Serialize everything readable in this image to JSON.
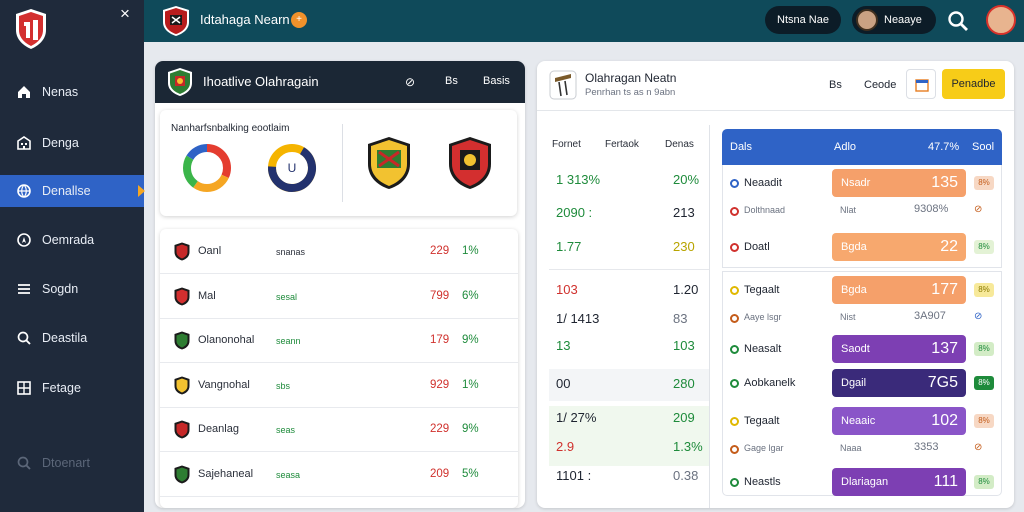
{
  "sidebar": {
    "close": "×",
    "items": [
      {
        "label": "Nenas",
        "icon": "home-icon"
      },
      {
        "label": "Denga",
        "icon": "building-icon"
      },
      {
        "label": "Denallse",
        "icon": "globe-icon"
      },
      {
        "label": "Oemrada",
        "icon": "location-icon"
      },
      {
        "label": "Sogdn",
        "icon": "menu-icon"
      },
      {
        "label": "Deastila",
        "icon": "search-icon"
      },
      {
        "label": "Fetage",
        "icon": "grid-icon"
      }
    ],
    "footer": {
      "label": "Dtoenart",
      "icon": "search-icon"
    }
  },
  "topbar": {
    "title": "Idtahaga Nearn",
    "dot": "+",
    "pill1": "Ntsna Nae",
    "pill2": "Neaaye"
  },
  "card1": {
    "title": "Ihoatlive Olahragain",
    "icon1": "⊘",
    "icon2": "Bs",
    "icon3": "Basis",
    "chart_caption": "Nanharfsnbalking eootlaim",
    "donut_center": "U",
    "rows": [
      {
        "name": "Oanl",
        "mid": "snanas",
        "v1": "229",
        "v2": "1%",
        "mid_green": false
      },
      {
        "name": "Mal",
        "mid": "sesal",
        "v1": "799",
        "v2": "6%",
        "mid_green": true
      },
      {
        "name": "Olanonohal",
        "mid": "seann",
        "v1": "179",
        "v2": "9%",
        "mid_green": true
      },
      {
        "name": "Vangnohal",
        "mid": "sbs",
        "v1": "929",
        "v2": "1%",
        "mid_green": true
      },
      {
        "name": "Deanlag",
        "mid": "seas",
        "v1": "229",
        "v2": "9%",
        "mid_green": true
      },
      {
        "name": "Sajehaneal",
        "mid": "seasa",
        "v1": "209",
        "v2": "5%",
        "mid_green": true
      }
    ]
  },
  "card3": {
    "title": "Olahragan Neatn",
    "subtitle": "Penrhan ts as n 9abn",
    "head_actions": {
      "a": "Bs",
      "b": "Ceode",
      "c": "Penadbe"
    },
    "columns": [
      "Fornet",
      "Fertaok",
      "Denas"
    ],
    "left_values": [
      {
        "a": "1  313%",
        "b": "20%",
        "ac": "g",
        "bc": "g"
      },
      {
        "a": "2090  :",
        "b": "213",
        "ac": "g",
        "bc": "k"
      },
      {
        "a": "1.77",
        "b": "230",
        "ac": "g",
        "bc": "y"
      },
      {
        "a": "103",
        "b": "1.20",
        "ac": "r",
        "bc": "k"
      },
      {
        "a": "1/  1413",
        "b": "83",
        "ac": "k",
        "bc": "gr"
      },
      {
        "a": "13",
        "b": "103",
        "ac": "g",
        "bc": "g"
      },
      {
        "a": "00",
        "b": "280",
        "ac": "k",
        "bc": "g"
      },
      {
        "a": "1/  27%",
        "b": "209",
        "ac": "k",
        "bc": "g"
      },
      {
        "a": "2.9",
        "b": "1.3%",
        "ac": "r",
        "bc": "g"
      },
      {
        "a": "1101  :",
        "b": "0.38",
        "ac": "k",
        "bc": "gr"
      }
    ],
    "table_head": {
      "a": "Dals",
      "b": "Adlo",
      "c": "47.7%",
      "d": "Sool"
    },
    "table_rows": [
      {
        "name": "Neaadit",
        "bar": "Nsadr",
        "value": "135",
        "chip": "8%",
        "color": "#f5a06a",
        "chipbg": "#f7d8c4",
        "chipfg": "#c45c1a",
        "dot": "#2f63c6"
      },
      {
        "name": "Dolthnaad",
        "bar": "Nlat",
        "value": "9308%",
        "chip": "⊘",
        "color": "",
        "chipbg": "",
        "chipfg": "#c45c1a",
        "dot": "#d0312d",
        "small": true
      },
      {
        "name": "Doatl",
        "bar": "Bgda",
        "value": "22",
        "chip": "8%",
        "color": "#f7a86e",
        "chipbg": "#e3f2d5",
        "chipfg": "#1e8b3b",
        "dot": "#d0312d"
      },
      {
        "name": "Tegaalt",
        "bar": "Bgda",
        "value": "177",
        "chip": "8%",
        "color": "#f5a06a",
        "chipbg": "#f7e99a",
        "chipfg": "#8a7a00",
        "dot": "#e0b800"
      },
      {
        "name": "Aaye lsgr",
        "bar": "Nist",
        "value": "3A907",
        "chip": "⊘",
        "color": "",
        "chipbg": "",
        "chipfg": "#2f63c6",
        "dot": "#c45c1a",
        "small": true
      },
      {
        "name": "Neasalt",
        "bar": "Saodt",
        "value": "137",
        "chip": "8%",
        "color": "#7d3fb3",
        "chipbg": "#d3ecc6",
        "chipfg": "#1e8b3b",
        "dot": "#1e8b3b"
      },
      {
        "name": "Aobkanelk",
        "bar": "Dgail",
        "value": "7G5",
        "chip": "8%",
        "color": "#3a2a7a",
        "chipbg": "#1e8b3b",
        "chipfg": "#fff",
        "dot": "#1e8b3b"
      },
      {
        "name": "Tegaalt",
        "bar": "Neaaic",
        "value": "102",
        "chip": "8%",
        "color": "#8a55c8",
        "chipbg": "#f7d8c4",
        "chipfg": "#c45c1a",
        "dot": "#e0b800"
      },
      {
        "name": "Gage lgar",
        "bar": "Naaa",
        "value": "3353",
        "chip": "⊘",
        "color": "",
        "chipbg": "",
        "chipfg": "#c45c1a",
        "dot": "#c45c1a",
        "small": true
      },
      {
        "name": "Neastls",
        "bar": "Dlariagan",
        "value": "111",
        "chip": "8%",
        "color": "#7d3fb3",
        "chipbg": "#d3ecc6",
        "chipfg": "#1e8b3b",
        "dot": "#1e8b3b"
      }
    ]
  }
}
